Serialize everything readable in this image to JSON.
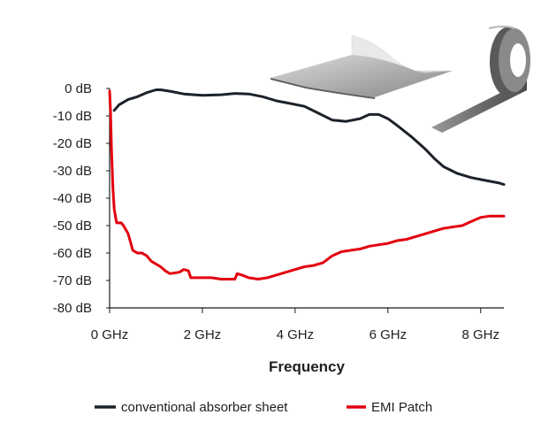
{
  "chart_data": {
    "type": "line",
    "title": "",
    "xlabel": "Frequency",
    "ylabel": "",
    "xlim": [
      0,
      8.5
    ],
    "ylim": [
      -80,
      0
    ],
    "x_ticks": [
      0,
      2,
      4,
      6,
      8
    ],
    "x_tick_labels": [
      "0 GHz",
      "2 GHz",
      "4 GHz",
      "6 GHz",
      "8 GHz"
    ],
    "y_ticks": [
      0,
      -10,
      -20,
      -30,
      -40,
      -50,
      -60,
      -70,
      -80
    ],
    "y_tick_labels": [
      "0 dB",
      "-10 dB",
      "-20 dB",
      "-30 dB",
      "-40 dB",
      "-50 dB",
      "-60 dB",
      "-70 dB",
      "-80 dB"
    ],
    "grid": false,
    "legend_position": "bottom",
    "series": [
      {
        "name": "conventional absorber sheet",
        "color": "#1c2229",
        "points": [
          [
            0.1,
            -8
          ],
          [
            0.2,
            -6
          ],
          [
            0.4,
            -4
          ],
          [
            0.6,
            -3
          ],
          [
            0.8,
            -1.5
          ],
          [
            1.0,
            -0.5
          ],
          [
            1.1,
            -0.5
          ],
          [
            1.3,
            -1
          ],
          [
            1.6,
            -2
          ],
          [
            2.0,
            -2.5
          ],
          [
            2.4,
            -2.3
          ],
          [
            2.7,
            -1.8
          ],
          [
            3.0,
            -2
          ],
          [
            3.3,
            -3
          ],
          [
            3.6,
            -4.5
          ],
          [
            3.9,
            -5.5
          ],
          [
            4.2,
            -6.5
          ],
          [
            4.5,
            -9
          ],
          [
            4.8,
            -11.5
          ],
          [
            5.1,
            -12
          ],
          [
            5.4,
            -11
          ],
          [
            5.6,
            -9.5
          ],
          [
            5.8,
            -9.5
          ],
          [
            6.0,
            -11
          ],
          [
            6.2,
            -13.5
          ],
          [
            6.5,
            -17.5
          ],
          [
            6.8,
            -22
          ],
          [
            7.0,
            -25.5
          ],
          [
            7.2,
            -28.5
          ],
          [
            7.5,
            -31
          ],
          [
            7.8,
            -32.5
          ],
          [
            8.1,
            -33.5
          ],
          [
            8.4,
            -34.5
          ],
          [
            8.5,
            -35
          ]
        ]
      },
      {
        "name": "EMI Patch",
        "color": "#e3000f",
        "points": [
          [
            0.0,
            -1
          ],
          [
            0.02,
            -8
          ],
          [
            0.04,
            -22
          ],
          [
            0.07,
            -36
          ],
          [
            0.1,
            -44
          ],
          [
            0.15,
            -49
          ],
          [
            0.25,
            -49
          ],
          [
            0.3,
            -50
          ],
          [
            0.4,
            -53
          ],
          [
            0.5,
            -59
          ],
          [
            0.6,
            -60
          ],
          [
            0.7,
            -60
          ],
          [
            0.8,
            -61
          ],
          [
            0.9,
            -63
          ],
          [
            1.0,
            -64
          ],
          [
            1.1,
            -65
          ],
          [
            1.2,
            -66.5
          ],
          [
            1.3,
            -67.5
          ],
          [
            1.5,
            -67
          ],
          [
            1.6,
            -66
          ],
          [
            1.7,
            -66.5
          ],
          [
            1.75,
            -69
          ],
          [
            2.0,
            -69
          ],
          [
            2.2,
            -69
          ],
          [
            2.4,
            -69.5
          ],
          [
            2.6,
            -69.5
          ],
          [
            2.7,
            -69.5
          ],
          [
            2.75,
            -67.5
          ],
          [
            2.85,
            -68
          ],
          [
            3.0,
            -69
          ],
          [
            3.2,
            -69.5
          ],
          [
            3.4,
            -69
          ],
          [
            3.6,
            -68
          ],
          [
            3.8,
            -67
          ],
          [
            4.0,
            -66
          ],
          [
            4.2,
            -65
          ],
          [
            4.4,
            -64.5
          ],
          [
            4.6,
            -63.5
          ],
          [
            4.8,
            -61
          ],
          [
            5.0,
            -59.5
          ],
          [
            5.2,
            -59
          ],
          [
            5.4,
            -58.5
          ],
          [
            5.6,
            -57.5
          ],
          [
            5.8,
            -57
          ],
          [
            6.0,
            -56.5
          ],
          [
            6.2,
            -55.5
          ],
          [
            6.4,
            -55
          ],
          [
            6.6,
            -54
          ],
          [
            6.8,
            -53
          ],
          [
            7.0,
            -52
          ],
          [
            7.2,
            -51
          ],
          [
            7.4,
            -50.5
          ],
          [
            7.6,
            -50
          ],
          [
            7.8,
            -48.5
          ],
          [
            8.0,
            -47
          ],
          [
            8.2,
            -46.5
          ],
          [
            8.4,
            -46.5
          ],
          [
            8.5,
            -46.5
          ]
        ]
      }
    ]
  },
  "illustrations": {
    "sheet": "absorber-sheet-illustration",
    "tape": "emi-tape-roll-illustration"
  }
}
